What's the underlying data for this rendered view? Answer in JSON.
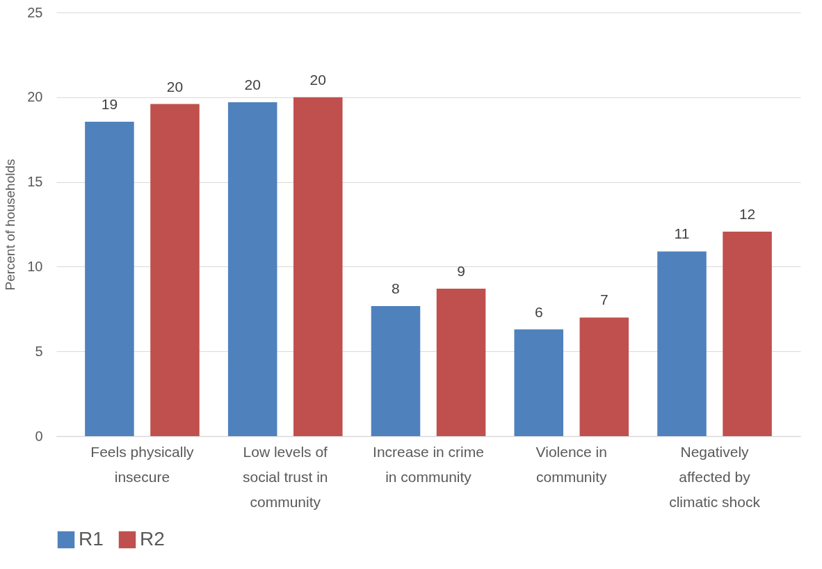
{
  "chart_data": {
    "type": "bar",
    "ylabel": "Percent of households",
    "categories": [
      "Feels physically insecure",
      "Low levels of social trust in community",
      "Increase in crime in community",
      "Violence in community",
      "Negatively affected by climatic shock"
    ],
    "series": [
      {
        "name": "R1",
        "color": "#4f81bd",
        "values": [
          18.55,
          19.7,
          7.68,
          6.3,
          10.9
        ],
        "value_labels": [
          "19",
          "20",
          "8",
          "6",
          "11"
        ]
      },
      {
        "name": "R2",
        "color": "#c0504d",
        "values": [
          19.6,
          20.0,
          8.7,
          7.0,
          12.07
        ],
        "value_labels": [
          "20",
          "20",
          "9",
          "7",
          "12"
        ]
      }
    ],
    "ylim": [
      0,
      25
    ],
    "yticks": [
      0,
      5,
      10,
      15,
      20,
      25
    ],
    "grid": "y",
    "legend": "bottom"
  }
}
